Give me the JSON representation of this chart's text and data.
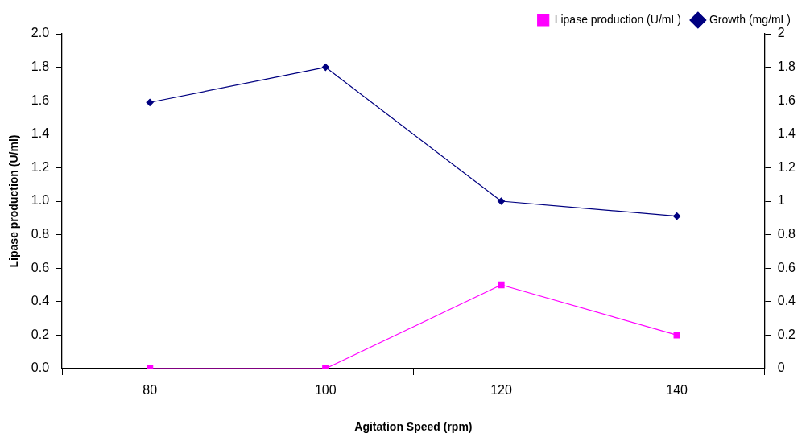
{
  "chart_data": {
    "type": "line",
    "xlabel": "Agitation Speed (rpm)",
    "ylabel": "Lipase production (U/ml)",
    "categories": [
      "80",
      "100",
      "120",
      "140"
    ],
    "series": [
      {
        "name": "Lipase production (U/mL)",
        "color": "#ff00ff",
        "values": [
          0,
          0,
          0.5,
          0.2
        ],
        "marker": "square"
      },
      {
        "name": "Growth (mg/mL)",
        "color": "#000080",
        "values": [
          1.59,
          1.8,
          1.0,
          0.91
        ],
        "marker": "diamond",
        "axis": "y2"
      }
    ],
    "ylim": [
      0,
      2
    ],
    "yticks": [
      {
        "value": 0,
        "label": "0.0"
      },
      {
        "value": 0.2,
        "label": "0.2"
      },
      {
        "value": 0.4,
        "label": "0.4"
      },
      {
        "value": 0.6,
        "label": "0.6"
      },
      {
        "value": 0.8,
        "label": "0.8"
      },
      {
        "value": 1,
        "label": "1.0"
      },
      {
        "value": 1.2,
        "label": "1.2"
      },
      {
        "value": 1.4,
        "label": "1.4"
      },
      {
        "value": 1.6,
        "label": "1.6"
      },
      {
        "value": 1.8,
        "label": "1.8"
      },
      {
        "value": 2,
        "label": "2.0"
      }
    ],
    "y2lim": [
      0,
      2
    ],
    "y2ticks": [
      0,
      0.2,
      0.4,
      0.6,
      0.8,
      1,
      1.2,
      1.4,
      1.6,
      1.8,
      2
    ],
    "grid": false,
    "legend": "top right",
    "line_style": "solid"
  }
}
